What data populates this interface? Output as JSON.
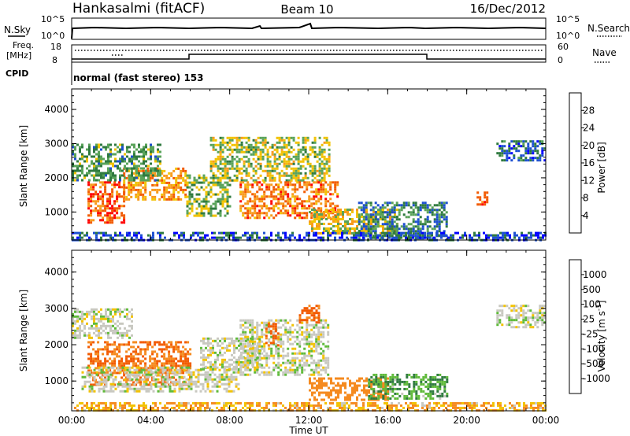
{
  "header": {
    "station": "Hankasalmi (fitACF)",
    "beam": "Beam 10",
    "date": "16/Dec/2012"
  },
  "noise_panel": {
    "left_label": "N.Sky",
    "right_label": "N.Search",
    "tick_top": "10^5",
    "tick_bottom": "10^0",
    "legend_style": "dotted"
  },
  "freq_panel": {
    "left_label_1": "Freq.",
    "left_label_2": "[MHz]",
    "left_ticks": [
      "18",
      "8"
    ],
    "right_ticks": [
      "60",
      "0"
    ],
    "right_label": "Nave",
    "cpid_label": "CPID",
    "cpid_text": "normal (fast stereo) 153"
  },
  "time_axis": {
    "label": "Time UT",
    "ticks": [
      "00:00",
      "04:00",
      "08:00",
      "12:00",
      "16:00",
      "20:00",
      "00:00"
    ]
  },
  "chart_data": [
    {
      "type": "heatmap",
      "title": "",
      "xlabel": "Time UT",
      "ylabel": "Slant Range [km]",
      "y_ticks": [
        "1000",
        "2000",
        "3000",
        "4000"
      ],
      "ylim": [
        180,
        4600
      ],
      "xlim_hours": [
        0,
        24
      ],
      "colorbar": {
        "label": "Power [dB]",
        "ticks": [
          "4",
          "8",
          "12",
          "16",
          "20",
          "24",
          "28"
        ],
        "colors": [
          "#0000ff",
          "#1d4fd1",
          "#2f7a3f",
          "#5aa35a",
          "#f2c200",
          "#f89a1c",
          "#f25a00",
          "#ff0000"
        ]
      },
      "regions": [
        {
          "t0": 0.8,
          "t1": 2.6,
          "r0": 700,
          "r1": 1900,
          "v": 26
        },
        {
          "t0": 2.6,
          "t1": 5.8,
          "r0": 1400,
          "r1": 2300,
          "v": 22
        },
        {
          "t0": 0.0,
          "t1": 4.5,
          "r0": 1900,
          "r1": 3000,
          "v": 12
        },
        {
          "t0": 5.8,
          "t1": 8.0,
          "r0": 900,
          "r1": 2100,
          "v": 14
        },
        {
          "t0": 7.0,
          "t1": 13.0,
          "r0": 1900,
          "r1": 3200,
          "v": 16
        },
        {
          "t0": 8.5,
          "t1": 13.5,
          "r0": 800,
          "r1": 1900,
          "v": 24
        },
        {
          "t0": 12.0,
          "t1": 16.5,
          "r0": 400,
          "r1": 1100,
          "v": 18
        },
        {
          "t0": 14.5,
          "t1": 19.0,
          "r0": 200,
          "r1": 1300,
          "v": 10
        },
        {
          "t0": 20.5,
          "t1": 21.0,
          "r0": 1200,
          "r1": 1600,
          "v": 28
        },
        {
          "t0": 21.5,
          "t1": 24.0,
          "r0": 2500,
          "r1": 3100,
          "v": 8
        },
        {
          "t0": 0.0,
          "t1": 24.0,
          "r0": 180,
          "r1": 420,
          "v": 6
        }
      ]
    },
    {
      "type": "heatmap",
      "title": "",
      "xlabel": "Time UT",
      "ylabel": "Slant Range [km]",
      "y_ticks": [
        "1000",
        "2000",
        "3000",
        "4000"
      ],
      "ylim": [
        180,
        4600
      ],
      "xlim_hours": [
        0,
        24
      ],
      "colorbar": {
        "label": "Velocity [m s^-1]",
        "ticks": [
          "1000",
          "500",
          "100",
          "25",
          "-25",
          "-100",
          "-500",
          "-1000"
        ],
        "colors": [
          "#1c3fd4",
          "#2a6ab0",
          "#2f7a3f",
          "#5fba3a",
          "#c8c8c0",
          "#f2c200",
          "#f58a1f",
          "#f25a00",
          "#ff0000"
        ]
      },
      "regions": [
        {
          "t0": 0.0,
          "t1": 3.0,
          "r0": 2200,
          "r1": 3000,
          "v": 0
        },
        {
          "t0": 0.8,
          "t1": 6.0,
          "r0": 900,
          "r1": 2100,
          "v": -300
        },
        {
          "t0": 0.5,
          "t1": 8.5,
          "r0": 700,
          "r1": 1400,
          "v": 0
        },
        {
          "t0": 6.5,
          "t1": 9.5,
          "r0": 1300,
          "r1": 2200,
          "v": 0
        },
        {
          "t0": 8.5,
          "t1": 13.0,
          "r0": 1200,
          "r1": 2700,
          "v": 0
        },
        {
          "t0": 9.8,
          "t1": 10.5,
          "r0": 2000,
          "r1": 2600,
          "v": -400
        },
        {
          "t0": 11.5,
          "t1": 12.5,
          "r0": 2600,
          "r1": 3100,
          "v": -400
        },
        {
          "t0": 12.0,
          "t1": 16.0,
          "r0": 450,
          "r1": 1100,
          "v": -150
        },
        {
          "t0": 15.0,
          "t1": 19.0,
          "r0": 500,
          "r1": 1200,
          "v": 60
        },
        {
          "t0": 21.5,
          "t1": 24.0,
          "r0": 2500,
          "r1": 3100,
          "v": 0
        },
        {
          "t0": 0.0,
          "t1": 24.0,
          "r0": 180,
          "r1": 420,
          "v": -60
        }
      ]
    }
  ]
}
